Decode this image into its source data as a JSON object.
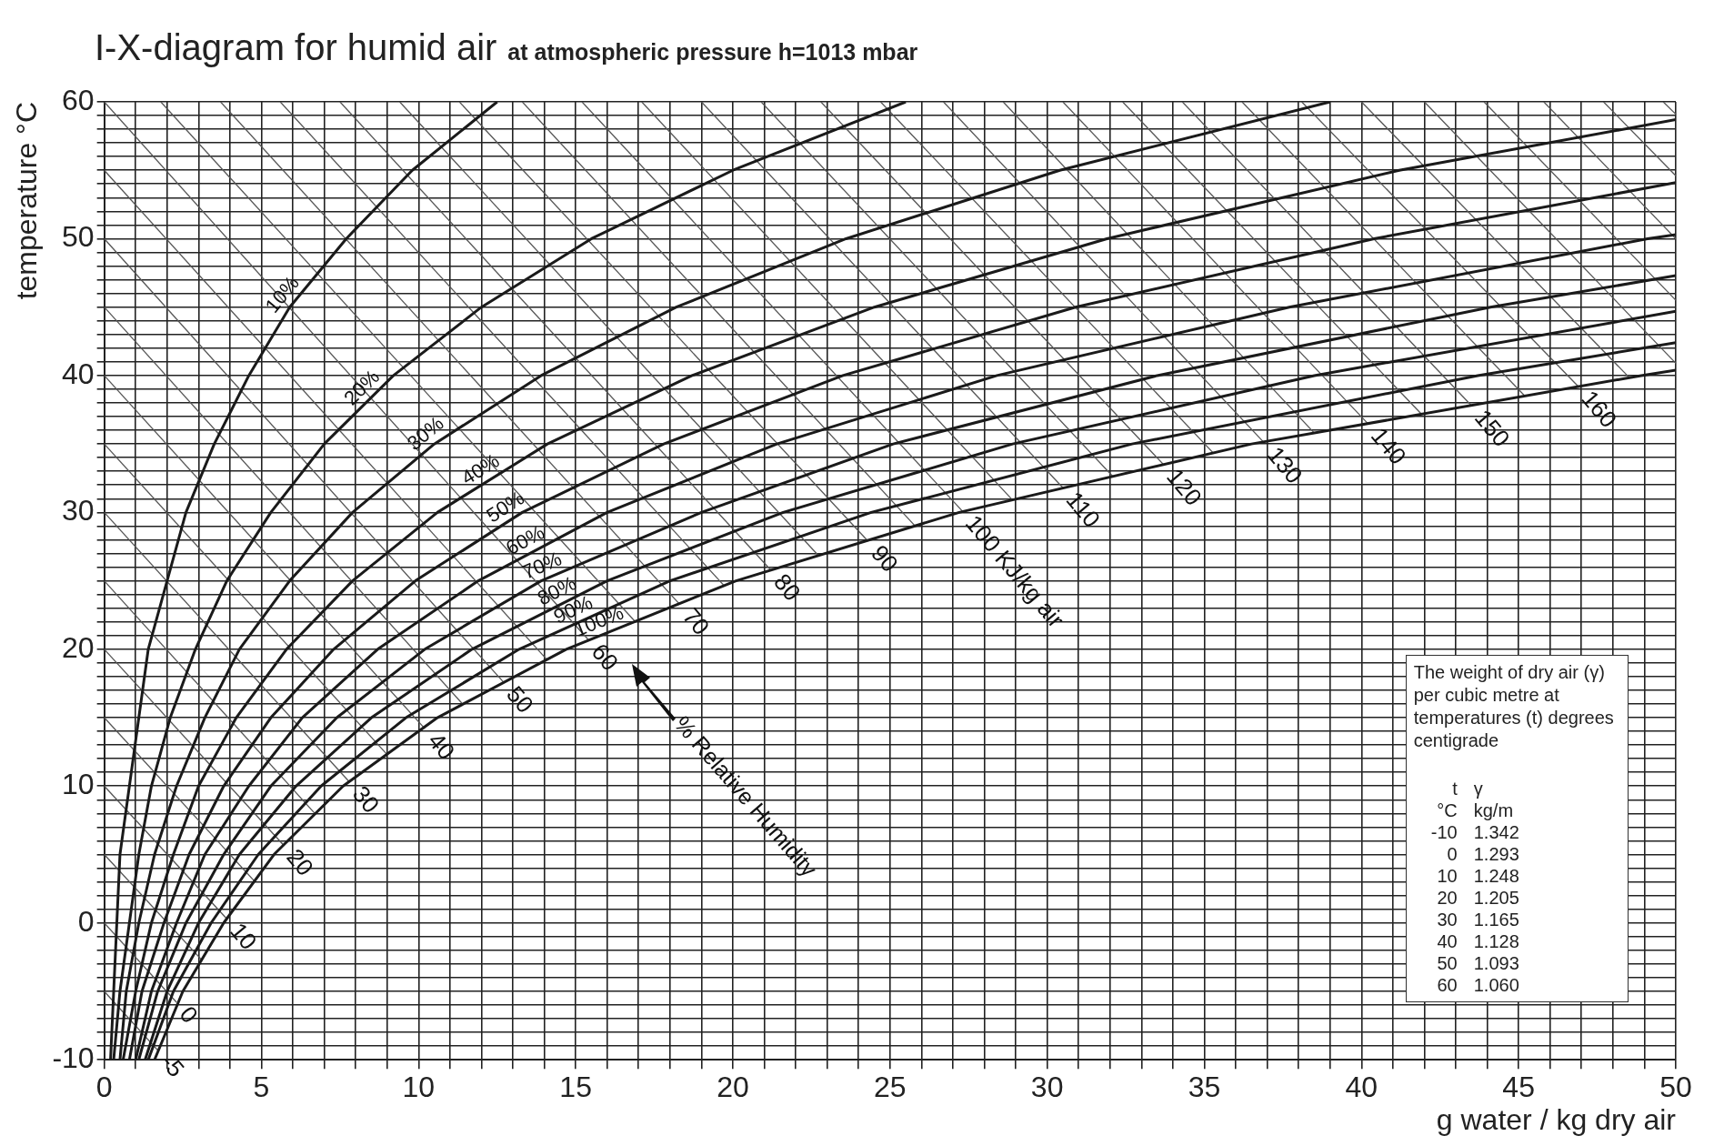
{
  "chart_data": {
    "type": "line",
    "title": "I-X-diagram for humid air",
    "subtitle": "at atmospheric pressure h=1013 mbar",
    "xlabel": "g water / kg dry air",
    "ylabel": "temperature °C",
    "xlim": [
      0,
      50
    ],
    "ylim": [
      -10,
      60
    ],
    "xticks": [
      0,
      {
        "value": 1,
        "label": null
      },
      {
        "value": 2,
        "label": null
      },
      {
        "value": 3,
        "label": null
      },
      {
        "value": 4,
        "label": null
      },
      5,
      {
        "value": 6,
        "label": null
      },
      {
        "value": 7,
        "label": null
      },
      {
        "value": 8,
        "label": null
      },
      {
        "value": 9,
        "label": null
      },
      10,
      {
        "value": 11,
        "label": null
      },
      {
        "value": 12,
        "label": null
      },
      {
        "value": 13,
        "label": null
      },
      {
        "value": 14,
        "label": null
      },
      15,
      {
        "value": 16,
        "label": null
      },
      {
        "value": 17,
        "label": null
      },
      {
        "value": 18,
        "label": null
      },
      {
        "value": 19,
        "label": null
      },
      20,
      {
        "value": 21,
        "label": null
      },
      {
        "value": 22,
        "label": null
      },
      {
        "value": 23,
        "label": null
      },
      {
        "value": 24,
        "label": null
      },
      25,
      {
        "value": 26,
        "label": null
      },
      {
        "value": 27,
        "label": null
      },
      {
        "value": 28,
        "label": null
      },
      {
        "value": 29,
        "label": null
      },
      30,
      {
        "value": 31,
        "label": null
      },
      {
        "value": 32,
        "label": null
      },
      {
        "value": 33,
        "label": null
      },
      {
        "value": 34,
        "label": null
      },
      35,
      {
        "value": 36,
        "label": null
      },
      {
        "value": 37,
        "label": null
      },
      {
        "value": 38,
        "label": null
      },
      {
        "value": 39,
        "label": null
      },
      40,
      {
        "value": 41,
        "label": null
      },
      {
        "value": 42,
        "label": null
      },
      {
        "value": 43,
        "label": null
      },
      {
        "value": 44,
        "label": null
      },
      45,
      {
        "value": 46,
        "label": null
      },
      {
        "value": 47,
        "label": null
      },
      {
        "value": 48,
        "label": null
      },
      {
        "value": 49,
        "label": null
      },
      50
    ],
    "yticks": [
      -10,
      {
        "value": -9,
        "label": null
      },
      {
        "value": -8,
        "label": null
      },
      {
        "value": -7,
        "label": null
      },
      {
        "value": -6,
        "label": null
      },
      {
        "value": -5,
        "label": null
      },
      {
        "value": -4,
        "label": null
      },
      {
        "value": -3,
        "label": null
      },
      {
        "value": -2,
        "label": null
      },
      {
        "value": -1,
        "label": null
      },
      0,
      {
        "value": 1,
        "label": null
      },
      {
        "value": 2,
        "label": null
      },
      {
        "value": 3,
        "label": null
      },
      {
        "value": 4,
        "label": null
      },
      {
        "value": 5,
        "label": null
      },
      {
        "value": 6,
        "label": null
      },
      {
        "value": 7,
        "label": null
      },
      {
        "value": 8,
        "label": null
      },
      {
        "value": 9,
        "label": null
      },
      10,
      {
        "value": 11,
        "label": null
      },
      {
        "value": 12,
        "label": null
      },
      {
        "value": 13,
        "label": null
      },
      {
        "value": 14,
        "label": null
      },
      {
        "value": 15,
        "label": null
      },
      {
        "value": 16,
        "label": null
      },
      {
        "value": 17,
        "label": null
      },
      {
        "value": 18,
        "label": null
      },
      {
        "value": 19,
        "label": null
      },
      20,
      {
        "value": 21,
        "label": null
      },
      {
        "value": 22,
        "label": null
      },
      {
        "value": 23,
        "label": null
      },
      {
        "value": 24,
        "label": null
      },
      {
        "value": 25,
        "label": null
      },
      {
        "value": 26,
        "label": null
      },
      {
        "value": 27,
        "label": null
      },
      {
        "value": 28,
        "label": null
      },
      {
        "value": 29,
        "label": null
      },
      30,
      {
        "value": 31,
        "label": null
      },
      {
        "value": 32,
        "label": null
      },
      {
        "value": 33,
        "label": null
      },
      {
        "value": 34,
        "label": null
      },
      {
        "value": 35,
        "label": null
      },
      {
        "value": 36,
        "label": null
      },
      {
        "value": 37,
        "label": null
      },
      {
        "value": 38,
        "label": null
      },
      {
        "value": 39,
        "label": null
      },
      40,
      {
        "value": 41,
        "label": null
      },
      {
        "value": 42,
        "label": null
      },
      {
        "value": 43,
        "label": null
      },
      {
        "value": 44,
        "label": null
      },
      {
        "value": 45,
        "label": null
      },
      {
        "value": 46,
        "label": null
      },
      {
        "value": 47,
        "label": null
      },
      {
        "value": 48,
        "label": null
      },
      {
        "value": 49,
        "label": null
      },
      50,
      {
        "value": 51,
        "label": null
      },
      {
        "value": 52,
        "label": null
      },
      {
        "value": 53,
        "label": null
      },
      {
        "value": 54,
        "label": null
      },
      {
        "value": 55,
        "label": null
      },
      {
        "value": 56,
        "label": null
      },
      {
        "value": 57,
        "label": null
      },
      {
        "value": 58,
        "label": null
      },
      {
        "value": 59,
        "label": null
      },
      60
    ],
    "grid": true,
    "legend": false,
    "marker": "none",
    "line_style": "solid",
    "series": [
      {
        "name": "10%",
        "color": "#1a1a1a",
        "x": [
          0.2,
          0.3,
          0.4,
          0.5,
          0.8,
          1.1,
          1.4,
          2.0,
          2.6,
          3.5,
          4.6,
          5.9,
          7.7,
          9.8,
          12.5
        ],
        "values": [
          -10,
          -5,
          0,
          5,
          10,
          15,
          20,
          25,
          30,
          35,
          40,
          45,
          50,
          55,
          60
        ]
      },
      {
        "name": "20%",
        "color": "#1a1a1a",
        "x": [
          0.3,
          0.5,
          0.8,
          1.1,
          1.5,
          2.1,
          2.9,
          3.9,
          5.3,
          7.0,
          9.2,
          12.0,
          15.5,
          20.0,
          25.5
        ],
        "values": [
          -10,
          -5,
          0,
          5,
          10,
          15,
          20,
          25,
          30,
          35,
          40,
          45,
          50,
          55,
          60
        ]
      },
      {
        "name": "30%",
        "color": "#1a1a1a",
        "x": [
          0.5,
          0.7,
          1.1,
          1.6,
          2.3,
          3.2,
          4.3,
          5.9,
          7.9,
          10.5,
          13.9,
          18.2,
          23.6,
          30.4,
          39.0
        ],
        "values": [
          -10,
          -5,
          0,
          5,
          10,
          15,
          20,
          25,
          30,
          35,
          40,
          45,
          50,
          55,
          60
        ]
      },
      {
        "name": "40%",
        "color": "#1a1a1a",
        "x": [
          0.6,
          1.0,
          1.5,
          2.2,
          3.0,
          4.2,
          5.8,
          7.9,
          10.6,
          14.1,
          18.7,
          24.5,
          31.9,
          41.2,
          50
        ],
        "values": [
          -10,
          -5,
          0,
          5,
          10,
          15,
          20,
          25,
          30,
          35,
          40,
          45,
          50,
          55,
          58.7
        ]
      },
      {
        "name": "50%",
        "color": "#1a1a1a",
        "x": [
          0.8,
          1.2,
          1.9,
          2.7,
          3.8,
          5.3,
          7.3,
          9.9,
          13.3,
          17.8,
          23.5,
          30.9,
          40.4,
          50
        ],
        "values": [
          -10,
          -5,
          0,
          5,
          10,
          15,
          20,
          25,
          30,
          35,
          40,
          45,
          50,
          54.1
        ]
      },
      {
        "name": "60%",
        "color": "#1a1a1a",
        "x": [
          1.0,
          1.5,
          2.3,
          3.2,
          4.6,
          6.3,
          8.7,
          11.9,
          16.0,
          21.4,
          28.4,
          37.7,
          49.1,
          50
        ],
        "values": [
          -10,
          -5,
          0,
          5,
          10,
          15,
          20,
          25,
          30,
          35,
          40,
          45,
          50,
          50.3
        ]
      },
      {
        "name": "70%",
        "color": "#1a1a1a",
        "x": [
          1.1,
          1.7,
          2.6,
          3.8,
          5.3,
          7.4,
          10.2,
          13.9,
          19.0,
          25.1,
          33.5,
          44.1,
          50
        ],
        "values": [
          -10,
          -5,
          0,
          5,
          10,
          15,
          20,
          25,
          30,
          35,
          40,
          45,
          47.3
        ]
      },
      {
        "name": "80%",
        "color": "#1a1a1a",
        "x": [
          1.3,
          2.0,
          3.0,
          4.3,
          6.1,
          8.5,
          11.7,
          16.0,
          21.6,
          28.9,
          38.5,
          50
        ],
        "values": [
          -10,
          -5,
          0,
          5,
          10,
          15,
          20,
          25,
          30,
          35,
          40,
          44.7
        ]
      },
      {
        "name": "90%",
        "color": "#1a1a1a",
        "x": [
          1.4,
          2.2,
          3.4,
          4.9,
          6.9,
          9.6,
          13.2,
          18.0,
          24.4,
          32.7,
          43.7,
          50
        ],
        "values": [
          -10,
          -5,
          0,
          5,
          10,
          15,
          20,
          25,
          30,
          35,
          40,
          42.4
        ]
      },
      {
        "name": "100%",
        "color": "#1a1a1a",
        "x": [
          1.6,
          2.5,
          3.8,
          5.4,
          7.6,
          10.6,
          14.7,
          20.1,
          27.2,
          36.5,
          48.9,
          50
        ],
        "values": [
          -10,
          -5,
          0,
          5,
          10,
          15,
          20,
          25,
          30,
          35,
          40,
          40.4
        ]
      },
      {
        "color": "#555555",
        "x": [
          0,
          1.7
        ],
        "values": [
          -5,
          -9.3
        ]
      },
      {
        "color": "#555555",
        "x": [
          0,
          2.3
        ],
        "values": [
          0,
          -5.8
        ]
      },
      {
        "color": "#555555",
        "x": [
          0,
          3.1
        ],
        "values": [
          5,
          -2.7
        ]
      },
      {
        "color": "#555555",
        "x": [
          0,
          3.9
        ],
        "values": [
          10,
          0.3
        ]
      },
      {
        "color": "#555555",
        "x": [
          0,
          4.8
        ],
        "values": [
          15,
          3.0
        ]
      },
      {
        "color": "#555555",
        "x": [
          0,
          5.7
        ],
        "values": [
          20,
          5.7
        ]
      },
      {
        "color": "#555555",
        "x": [
          0,
          6.7
        ],
        "values": [
          25,
          8.0
        ]
      },
      {
        "color": "#555555",
        "x": [
          0,
          7.8
        ],
        "values": [
          30,
          10.3
        ]
      },
      {
        "color": "#555555",
        "x": [
          0,
          9.0
        ],
        "values": [
          35,
          12.3
        ]
      },
      {
        "color": "#555555",
        "x": [
          0,
          10.2
        ],
        "values": [
          40,
          14.2
        ]
      },
      {
        "color": "#555555",
        "x": [
          0,
          11.4
        ],
        "values": [
          45,
          16.0
        ]
      },
      {
        "color": "#555555",
        "x": [
          0,
          12.7
        ],
        "values": [
          50,
          17.6
        ]
      },
      {
        "color": "#555555",
        "x": [
          0,
          14.1
        ],
        "values": [
          55,
          19.2
        ]
      },
      {
        "color": "#555555",
        "x": [
          0,
          15.4
        ],
        "values": [
          60,
          20.7
        ]
      },
      {
        "color": "#555555",
        "x": [
          1.8,
          16.9
        ],
        "values": [
          60,
          22.0
        ]
      },
      {
        "color": "#555555",
        "x": [
          3.7,
          18.3
        ],
        "values": [
          60,
          23.3
        ]
      },
      {
        "color": "#555555",
        "x": [
          5.6,
          19.7
        ],
        "values": [
          60,
          24.7
        ]
      },
      {
        "color": "#555555",
        "x": [
          7.5,
          21.2
        ],
        "values": [
          60,
          25.8
        ]
      },
      {
        "color": "#555555",
        "x": [
          9.4,
          22.7
        ],
        "values": [
          60,
          26.9
        ]
      },
      {
        "color": "#555555",
        "x": [
          11.3,
          24.3
        ],
        "values": [
          60,
          27.9
        ]
      },
      {
        "color": "#555555",
        "x": [
          13.3,
          25.8
        ],
        "values": [
          60,
          29.0
        ]
      },
      {
        "color": "#555555",
        "x": [
          15.2,
          27.3
        ],
        "values": [
          60,
          30.1
        ]
      },
      {
        "color": "#555555",
        "x": [
          17.1,
          28.9
        ],
        "values": [
          60,
          30.9
        ]
      },
      {
        "color": "#555555",
        "x": [
          19.0,
          30.5
        ],
        "values": [
          60,
          31.8
        ]
      },
      {
        "color": "#555555",
        "x": [
          20.9,
          32.1
        ],
        "values": [
          60,
          32.6
        ]
      },
      {
        "color": "#555555",
        "x": [
          22.8,
          33.7
        ],
        "values": [
          60,
          33.5
        ]
      },
      {
        "color": "#555555",
        "x": [
          24.7,
          35.3
        ],
        "values": [
          60,
          34.3
        ]
      },
      {
        "color": "#555555",
        "x": [
          26.7,
          36.9
        ],
        "values": [
          60,
          35.1
        ]
      },
      {
        "color": "#555555",
        "x": [
          28.6,
          38.5
        ],
        "values": [
          60,
          35.8
        ]
      },
      {
        "color": "#555555",
        "x": [
          30.5,
          40.2
        ],
        "values": [
          60,
          36.5
        ]
      },
      {
        "color": "#555555",
        "x": [
          32.4,
          41.9
        ],
        "values": [
          60,
          37.2
        ]
      },
      {
        "color": "#555555",
        "x": [
          34.3,
          43.5
        ],
        "values": [
          60,
          37.8
        ]
      },
      {
        "color": "#555555",
        "x": [
          36.2,
          45.2
        ],
        "values": [
          60,
          38.5
        ]
      },
      {
        "color": "#555555",
        "x": [
          38.1,
          46.9
        ],
        "values": [
          60,
          39.2
        ]
      },
      {
        "color": "#555555",
        "x": [
          40.0,
          48.5
        ],
        "values": [
          60,
          39.9
        ]
      },
      {
        "color": "#555555",
        "x": [
          42.0,
          50
        ],
        "values": [
          60,
          40.9
        ]
      },
      {
        "color": "#555555",
        "x": [
          43.9,
          50
        ],
        "values": [
          60,
          45.5
        ]
      },
      {
        "color": "#555555",
        "x": [
          45.8,
          50
        ],
        "values": [
          60,
          50.0
        ]
      },
      {
        "color": "#555555",
        "x": [
          47.7,
          50
        ],
        "values": [
          60,
          54.6
        ]
      },
      {
        "color": "#555555",
        "x": [
          49.6,
          50
        ],
        "values": [
          60,
          59.1
        ]
      }
    ],
    "annotations": [
      {
        "text": "-5",
        "x": 1.7,
        "y": -9.3
      },
      {
        "text": "0",
        "x": 2.3,
        "y": -5.8
      },
      {
        "text": "10",
        "x": 3.9,
        "y": 0.3
      },
      {
        "text": "20",
        "x": 5.7,
        "y": 5.7
      },
      {
        "text": "30",
        "x": 7.8,
        "y": 10.3
      },
      {
        "text": "40",
        "x": 10.2,
        "y": 14.2
      },
      {
        "text": "50",
        "x": 12.7,
        "y": 17.6
      },
      {
        "text": "60",
        "x": 15.4,
        "y": 20.7
      },
      {
        "text": "70",
        "x": 18.3,
        "y": 23.3
      },
      {
        "text": "80",
        "x": 21.2,
        "y": 25.8
      },
      {
        "text": "90",
        "x": 24.3,
        "y": 27.9
      },
      {
        "text": "100 KJ/kg air",
        "x": 27.3,
        "y": 30.1
      },
      {
        "text": "110",
        "x": 30.5,
        "y": 31.8
      },
      {
        "text": "120",
        "x": 33.7,
        "y": 33.5
      },
      {
        "text": "130",
        "x": 36.9,
        "y": 35.1
      },
      {
        "text": "140",
        "x": 40.2,
        "y": 36.5
      },
      {
        "text": "150",
        "x": 43.5,
        "y": 37.8
      },
      {
        "text": "160",
        "x": 46.9,
        "y": 39.2
      },
      "% Relative Humidity",
      "The weight of dry air (γ) per cubic metre at temperatures (t) degrees centigrade",
      "t",
      "γ",
      "°C",
      "kg/m",
      "-10",
      "1.342",
      "0",
      "1.293",
      "10",
      "1.248",
      "20",
      "1.205",
      "30",
      "1.165",
      "40",
      "1.128",
      "50",
      "1.093",
      "60",
      "1.060"
    ]
  }
}
